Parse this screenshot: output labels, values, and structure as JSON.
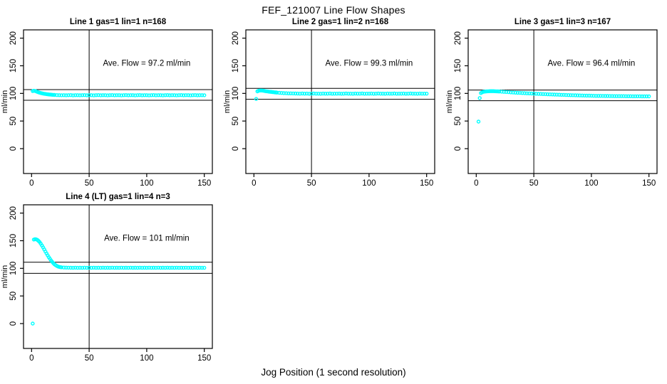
{
  "title": "FEF_121007  Line Flow Shapes",
  "xlabel": "Jog Position (1 second resolution)",
  "colors": {
    "point": "#00FFFF",
    "axis": "#000000",
    "background": "#ffffff"
  },
  "chart_data": [
    {
      "type": "scatter",
      "title": "Line 1 gas=1 lin=1 n=168",
      "ave_flow_label": "Ave. Flow =  97.2  ml/min",
      "ave_flow_value": 97.2,
      "ylabel": "ml/min",
      "x_ticks": [
        0,
        50,
        100,
        150
      ],
      "y_ticks": [
        0,
        50,
        100,
        150,
        200
      ],
      "xlim": [
        -7,
        157
      ],
      "ylim": [
        -45,
        215
      ],
      "hlines": [
        106.9,
        87.5
      ],
      "vline": 50,
      "points": [
        [
          1,
          104.2
        ],
        [
          2,
          104.8
        ],
        [
          3,
          104.4
        ],
        [
          4,
          103.6
        ],
        [
          5,
          102.8
        ],
        [
          6,
          102.0
        ],
        [
          7,
          101.3
        ],
        [
          8,
          100.7
        ],
        [
          9,
          100.2
        ],
        [
          10,
          99.7
        ],
        [
          11,
          99.3
        ],
        [
          12,
          99.0
        ],
        [
          13,
          98.7
        ],
        [
          14,
          98.4
        ],
        [
          15,
          98.1
        ],
        [
          16,
          97.9
        ],
        [
          17,
          97.7
        ],
        [
          18,
          97.5
        ],
        [
          19,
          97.4
        ],
        [
          20,
          97.2
        ],
        [
          22,
          97.0
        ],
        [
          24,
          96.9
        ],
        [
          26,
          96.7
        ],
        [
          28,
          96.9
        ],
        [
          30,
          96.6
        ],
        [
          32,
          96.8
        ],
        [
          34,
          97.0
        ],
        [
          36,
          96.5
        ],
        [
          38,
          96.8
        ],
        [
          40,
          96.9
        ],
        [
          42,
          96.6
        ],
        [
          44,
          96.8
        ],
        [
          46,
          97.0
        ],
        [
          48,
          96.6
        ],
        [
          50,
          96.8
        ],
        [
          52,
          96.9
        ],
        [
          54,
          96.5
        ],
        [
          56,
          96.8
        ],
        [
          58,
          97.0
        ],
        [
          60,
          96.6
        ],
        [
          62,
          96.8
        ],
        [
          64,
          96.9
        ],
        [
          66,
          96.5
        ],
        [
          68,
          96.8
        ],
        [
          70,
          97.0
        ],
        [
          72,
          96.6
        ],
        [
          74,
          96.8
        ],
        [
          76,
          96.9
        ],
        [
          78,
          96.5
        ],
        [
          80,
          96.8
        ],
        [
          82,
          97.0
        ],
        [
          84,
          96.6
        ],
        [
          86,
          96.8
        ],
        [
          88,
          96.9
        ],
        [
          90,
          96.5
        ],
        [
          92,
          96.8
        ],
        [
          94,
          97.0
        ],
        [
          96,
          96.6
        ],
        [
          98,
          96.8
        ],
        [
          100,
          96.9
        ],
        [
          102,
          96.5
        ],
        [
          104,
          96.8
        ],
        [
          106,
          97.0
        ],
        [
          108,
          96.6
        ],
        [
          110,
          96.8
        ],
        [
          112,
          96.9
        ],
        [
          114,
          96.5
        ],
        [
          116,
          96.8
        ],
        [
          118,
          97.0
        ],
        [
          120,
          96.6
        ],
        [
          122,
          96.8
        ],
        [
          124,
          96.9
        ],
        [
          126,
          96.5
        ],
        [
          128,
          96.8
        ],
        [
          130,
          97.0
        ],
        [
          132,
          96.6
        ],
        [
          134,
          96.8
        ],
        [
          136,
          96.9
        ],
        [
          138,
          96.5
        ],
        [
          140,
          96.8
        ],
        [
          142,
          97.0
        ],
        [
          144,
          96.6
        ],
        [
          146,
          96.8
        ],
        [
          148,
          96.9
        ],
        [
          150,
          96.7
        ]
      ]
    },
    {
      "type": "scatter",
      "title": "Line 2 gas=1 lin=2 n=168",
      "ave_flow_label": "Ave. Flow =  99.3  ml/min",
      "ave_flow_value": 99.3,
      "ylabel": "ml/min",
      "x_ticks": [
        0,
        50,
        100,
        150
      ],
      "y_ticks": [
        0,
        50,
        100,
        150,
        200
      ],
      "xlim": [
        -7,
        157
      ],
      "ylim": [
        -45,
        215
      ],
      "hlines": [
        109.2,
        89.4
      ],
      "vline": 50,
      "points": [
        [
          2,
          90.0
        ],
        [
          3,
          103.6
        ],
        [
          4,
          104.7
        ],
        [
          5,
          105.2
        ],
        [
          6,
          105.4
        ],
        [
          7,
          105.2
        ],
        [
          8,
          104.9
        ],
        [
          9,
          104.5
        ],
        [
          10,
          104.1
        ],
        [
          11,
          103.8
        ],
        [
          12,
          103.5
        ],
        [
          13,
          103.2
        ],
        [
          14,
          102.9
        ],
        [
          15,
          102.7
        ],
        [
          16,
          102.4
        ],
        [
          17,
          102.2
        ],
        [
          18,
          101.9
        ],
        [
          19,
          101.7
        ],
        [
          20,
          101.5
        ],
        [
          22,
          101.1
        ],
        [
          24,
          100.8
        ],
        [
          26,
          100.5
        ],
        [
          28,
          100.3
        ],
        [
          30,
          100.1
        ],
        [
          32,
          100.0
        ],
        [
          34,
          99.9
        ],
        [
          36,
          99.8
        ],
        [
          38,
          99.7
        ],
        [
          40,
          99.6
        ],
        [
          42,
          99.8
        ],
        [
          44,
          99.5
        ],
        [
          46,
          99.7
        ],
        [
          48,
          99.4
        ],
        [
          50,
          99.6
        ],
        [
          52,
          99.8
        ],
        [
          54,
          99.5
        ],
        [
          56,
          99.6
        ],
        [
          58,
          99.4
        ],
        [
          60,
          99.7
        ],
        [
          62,
          99.5
        ],
        [
          64,
          99.6
        ],
        [
          66,
          99.8
        ],
        [
          68,
          99.4
        ],
        [
          70,
          99.6
        ],
        [
          72,
          99.5
        ],
        [
          74,
          99.7
        ],
        [
          76,
          99.4
        ],
        [
          78,
          99.6
        ],
        [
          80,
          99.8
        ],
        [
          82,
          99.5
        ],
        [
          84,
          99.6
        ],
        [
          86,
          99.4
        ],
        [
          88,
          99.7
        ],
        [
          90,
          99.5
        ],
        [
          92,
          99.6
        ],
        [
          94,
          99.8
        ],
        [
          96,
          99.4
        ],
        [
          98,
          99.6
        ],
        [
          100,
          99.5
        ],
        [
          102,
          99.7
        ],
        [
          104,
          99.4
        ],
        [
          106,
          99.6
        ],
        [
          108,
          99.8
        ],
        [
          110,
          99.5
        ],
        [
          112,
          99.6
        ],
        [
          114,
          99.4
        ],
        [
          116,
          99.7
        ],
        [
          118,
          99.5
        ],
        [
          120,
          99.6
        ],
        [
          122,
          99.8
        ],
        [
          124,
          99.4
        ],
        [
          126,
          99.6
        ],
        [
          128,
          99.5
        ],
        [
          130,
          99.7
        ],
        [
          132,
          99.4
        ],
        [
          134,
          99.6
        ],
        [
          136,
          99.8
        ],
        [
          138,
          99.5
        ],
        [
          140,
          99.6
        ],
        [
          142,
          99.4
        ],
        [
          144,
          99.7
        ],
        [
          146,
          99.5
        ],
        [
          148,
          99.6
        ],
        [
          150,
          99.6
        ]
      ]
    },
    {
      "type": "scatter",
      "title": "Line 3 gas=1 lin=3 n=167",
      "ave_flow_label": "Ave. Flow =  96.4  ml/min",
      "ave_flow_value": 96.4,
      "ylabel": "ml/min",
      "x_ticks": [
        0,
        50,
        100,
        150
      ],
      "y_ticks": [
        0,
        50,
        100,
        150,
        200
      ],
      "xlim": [
        -7,
        157
      ],
      "ylim": [
        -45,
        215
      ],
      "hlines": [
        106.0,
        86.8
      ],
      "vline": 50,
      "points": [
        [
          2,
          49.0
        ],
        [
          3,
          91.5
        ],
        [
          4,
          100.6
        ],
        [
          5,
          101.9
        ],
        [
          6,
          102.7
        ],
        [
          7,
          103.1
        ],
        [
          8,
          103.4
        ],
        [
          9,
          103.6
        ],
        [
          10,
          103.8
        ],
        [
          11,
          103.9
        ],
        [
          12,
          104.0
        ],
        [
          13,
          104.1
        ],
        [
          14,
          104.1
        ],
        [
          15,
          104.0
        ],
        [
          16,
          103.9
        ],
        [
          17,
          103.8
        ],
        [
          18,
          103.7
        ],
        [
          19,
          103.6
        ],
        [
          20,
          103.4
        ],
        [
          22,
          103.1
        ],
        [
          24,
          102.8
        ],
        [
          26,
          102.5
        ],
        [
          28,
          102.2
        ],
        [
          30,
          101.9
        ],
        [
          32,
          101.6
        ],
        [
          34,
          101.4
        ],
        [
          36,
          101.1
        ],
        [
          38,
          100.9
        ],
        [
          40,
          100.7
        ],
        [
          42,
          100.4
        ],
        [
          44,
          100.2
        ],
        [
          46,
          100.0
        ],
        [
          48,
          99.8
        ],
        [
          50,
          99.6
        ],
        [
          52,
          99.4
        ],
        [
          54,
          99.2
        ],
        [
          56,
          99.0
        ],
        [
          58,
          98.8
        ],
        [
          60,
          98.6
        ],
        [
          62,
          98.4
        ],
        [
          64,
          98.2
        ],
        [
          66,
          98.1
        ],
        [
          68,
          97.9
        ],
        [
          70,
          97.7
        ],
        [
          72,
          97.6
        ],
        [
          74,
          97.4
        ],
        [
          76,
          97.3
        ],
        [
          78,
          97.1
        ],
        [
          80,
          97.0
        ],
        [
          82,
          96.8
        ],
        [
          84,
          96.7
        ],
        [
          86,
          96.6
        ],
        [
          88,
          96.4
        ],
        [
          90,
          96.3
        ],
        [
          92,
          96.2
        ],
        [
          94,
          96.1
        ],
        [
          96,
          96.0
        ],
        [
          98,
          95.9
        ],
        [
          100,
          95.8
        ],
        [
          102,
          95.7
        ],
        [
          104,
          95.6
        ],
        [
          106,
          95.5
        ],
        [
          108,
          95.5
        ],
        [
          110,
          95.4
        ],
        [
          112,
          95.3
        ],
        [
          114,
          95.3
        ],
        [
          116,
          95.2
        ],
        [
          118,
          95.2
        ],
        [
          120,
          95.1
        ],
        [
          122,
          95.1
        ],
        [
          124,
          95.0
        ],
        [
          126,
          95.0
        ],
        [
          128,
          95.0
        ],
        [
          130,
          94.9
        ],
        [
          132,
          94.9
        ],
        [
          134,
          94.9
        ],
        [
          136,
          94.8
        ],
        [
          138,
          94.8
        ],
        [
          140,
          94.8
        ],
        [
          142,
          94.8
        ],
        [
          144,
          94.7
        ],
        [
          146,
          94.7
        ],
        [
          148,
          94.7
        ],
        [
          150,
          94.7
        ]
      ]
    },
    {
      "type": "scatter",
      "title": "Line 4 (LT) gas=1 lin=4 n=3",
      "ave_flow_label": "Ave. Flow =  101  ml/min",
      "ave_flow_value": 101,
      "ylabel": "ml/min",
      "x_ticks": [
        0,
        50,
        100,
        150
      ],
      "y_ticks": [
        0,
        50,
        100,
        150,
        200
      ],
      "xlim": [
        -7,
        157
      ],
      "ylim": [
        -45,
        215
      ],
      "hlines": [
        111.1,
        90.9
      ],
      "vline": 50,
      "points": [
        [
          1,
          0.0
        ],
        [
          2,
          152.0
        ],
        [
          3,
          152.8
        ],
        [
          4,
          152.5
        ],
        [
          5,
          151.5
        ],
        [
          6,
          149.8
        ],
        [
          7,
          147.5
        ],
        [
          8,
          144.6
        ],
        [
          9,
          141.4
        ],
        [
          10,
          137.9
        ],
        [
          11,
          134.3
        ],
        [
          12,
          130.6
        ],
        [
          13,
          127.0
        ],
        [
          14,
          123.5
        ],
        [
          15,
          120.1
        ],
        [
          16,
          117.0
        ],
        [
          17,
          114.1
        ],
        [
          18,
          111.5
        ],
        [
          19,
          109.2
        ],
        [
          20,
          107.2
        ],
        [
          21,
          105.6
        ],
        [
          22,
          104.3
        ],
        [
          23,
          103.3
        ],
        [
          24,
          102.6
        ],
        [
          25,
          102.1
        ],
        [
          26,
          101.8
        ],
        [
          28,
          101.5
        ],
        [
          30,
          101.3
        ],
        [
          32,
          101.2
        ],
        [
          34,
          101.1
        ],
        [
          36,
          101.0
        ],
        [
          38,
          101.2
        ],
        [
          40,
          100.9
        ],
        [
          42,
          101.1
        ],
        [
          44,
          101.0
        ],
        [
          46,
          101.2
        ],
        [
          48,
          100.9
        ],
        [
          50,
          101.1
        ],
        [
          52,
          101.0
        ],
        [
          54,
          101.2
        ],
        [
          56,
          100.9
        ],
        [
          58,
          101.1
        ],
        [
          60,
          101.0
        ],
        [
          62,
          101.2
        ],
        [
          64,
          100.9
        ],
        [
          66,
          101.1
        ],
        [
          68,
          101.0
        ],
        [
          70,
          101.2
        ],
        [
          72,
          100.9
        ],
        [
          74,
          101.1
        ],
        [
          76,
          101.0
        ],
        [
          78,
          101.2
        ],
        [
          80,
          100.9
        ],
        [
          82,
          101.1
        ],
        [
          84,
          101.0
        ],
        [
          86,
          101.2
        ],
        [
          88,
          100.9
        ],
        [
          90,
          101.1
        ],
        [
          92,
          101.0
        ],
        [
          94,
          101.2
        ],
        [
          96,
          100.9
        ],
        [
          98,
          101.1
        ],
        [
          100,
          101.0
        ],
        [
          102,
          101.2
        ],
        [
          104,
          100.9
        ],
        [
          106,
          101.1
        ],
        [
          108,
          101.0
        ],
        [
          110,
          101.2
        ],
        [
          112,
          100.9
        ],
        [
          114,
          101.1
        ],
        [
          116,
          101.0
        ],
        [
          118,
          101.2
        ],
        [
          120,
          100.9
        ],
        [
          122,
          101.1
        ],
        [
          124,
          101.0
        ],
        [
          126,
          101.2
        ],
        [
          128,
          100.9
        ],
        [
          130,
          101.1
        ],
        [
          132,
          101.0
        ],
        [
          134,
          101.2
        ],
        [
          136,
          100.9
        ],
        [
          138,
          101.1
        ],
        [
          140,
          101.0
        ],
        [
          142,
          101.2
        ],
        [
          144,
          100.9
        ],
        [
          146,
          101.1
        ],
        [
          148,
          101.0
        ],
        [
          150,
          100.9
        ]
      ]
    }
  ]
}
